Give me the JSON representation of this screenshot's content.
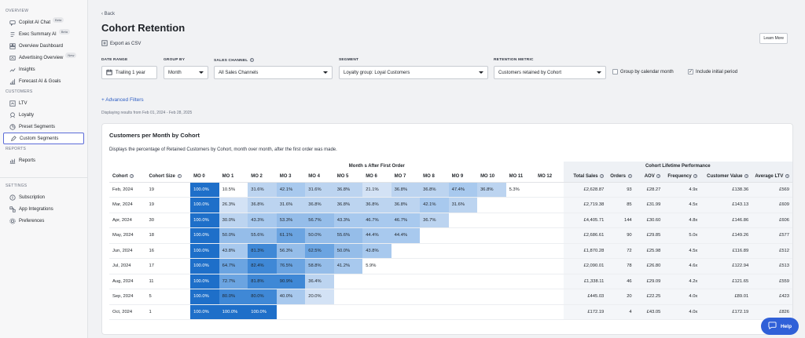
{
  "sidebar": {
    "sections": [
      {
        "label": "OVERVIEW",
        "items": [
          {
            "label": "Copilot AI Chat",
            "badge": "Beta",
            "icon": "chat-icon"
          },
          {
            "label": "Exec Summary AI",
            "badge": "Beta",
            "icon": "summary-icon"
          },
          {
            "label": "Overview Dashboard",
            "icon": "dashboard-icon"
          },
          {
            "label": "Advertising Overview",
            "badge": "New",
            "icon": "advertising-icon"
          },
          {
            "label": "Insights",
            "icon": "insights-icon"
          },
          {
            "label": "Forecast AI & Goals",
            "icon": "forecast-icon"
          }
        ]
      },
      {
        "label": "CUSTOMERS",
        "items": [
          {
            "label": "LTV",
            "icon": "ltv-icon"
          },
          {
            "label": "Loyalty",
            "icon": "loyalty-icon"
          },
          {
            "label": "Preset Segments",
            "icon": "preset-segments-icon"
          },
          {
            "label": "Custom Segments",
            "icon": "pencil-icon",
            "active": true
          }
        ]
      },
      {
        "label": "REPORTS",
        "items": [
          {
            "label": "Reports",
            "icon": "reports-icon"
          }
        ]
      },
      {
        "label": "SETTINGS",
        "items": [
          {
            "label": "Subscription",
            "icon": "subscription-icon"
          },
          {
            "label": "App Integrations",
            "icon": "integrations-icon"
          },
          {
            "label": "Preferences",
            "icon": "preferences-icon"
          }
        ]
      }
    ]
  },
  "header": {
    "back_label": "Back",
    "title": "Cohort Retention",
    "export_label": "Export as CSV",
    "learn_more": "Learn More"
  },
  "filters": {
    "date_range": {
      "label": "DATE RANGE",
      "value": "Trailing 1 year"
    },
    "group_by": {
      "label": "GROUP BY",
      "value": "Month"
    },
    "sales_channel": {
      "label": "SALES CHANNEL",
      "value": "All Sales Channels"
    },
    "segment": {
      "label": "SEGMENT",
      "value": "Loyalty group: Loyal Customers"
    },
    "retention_metric": {
      "label": "RETENTION METRIC",
      "value": "Customers retained by Cohort"
    },
    "group_by_calendar": {
      "label": "Group by calendar month",
      "checked": false
    },
    "include_initial": {
      "label": "Include initial period",
      "checked": true
    },
    "advanced_filters": "+ Advanced Filters",
    "displaying": "Displaying results from Feb 01, 2024 - Feb 28, 2025"
  },
  "card": {
    "title": "Customers per Month by Cohort",
    "description": "Displays the percentage of Retained Customers by Cohort, month over month, after the first order was made.",
    "group_months": "Month s After First Order",
    "group_perf": "Cohort Lifetime Performance",
    "col_cohort": "Cohort",
    "col_size": "Cohort Size",
    "month_headers": [
      "MO 0",
      "MO 1",
      "MO 2",
      "MO 3",
      "MO 4",
      "MO 5",
      "MO 6",
      "MO 7",
      "MO 8",
      "MO 9",
      "MO 10",
      "MO 11",
      "MO 12"
    ],
    "perf_headers": [
      "Total Sales",
      "Orders",
      "AOV",
      "Frequency",
      "Customer Value",
      "Average LTV"
    ],
    "rows": [
      {
        "cohort": "Feb, 2024",
        "size": "19",
        "cells": [
          "100.0%",
          "10.5%",
          "31.6%",
          "42.1%",
          "31.6%",
          "36.8%",
          "21.1%",
          "36.8%",
          "36.8%",
          "47.4%",
          "36.8%",
          "5.3%",
          ""
        ],
        "perf": [
          "£2,628.87",
          "93",
          "£28.27",
          "4.9x",
          "£138.36",
          "£569"
        ]
      },
      {
        "cohort": "Mar, 2024",
        "size": "19",
        "cells": [
          "100.0%",
          "26.3%",
          "36.8%",
          "31.6%",
          "36.8%",
          "36.8%",
          "36.8%",
          "36.8%",
          "42.1%",
          "31.6%",
          "",
          "",
          ""
        ],
        "perf": [
          "£2,719.38",
          "85",
          "£31.99",
          "4.5x",
          "£143.13",
          "£609"
        ]
      },
      {
        "cohort": "Apr, 2024",
        "size": "30",
        "cells": [
          "100.0%",
          "30.0%",
          "43.3%",
          "53.3%",
          "56.7%",
          "43.3%",
          "46.7%",
          "46.7%",
          "36.7%",
          "",
          "",
          "",
          ""
        ],
        "perf": [
          "£4,405.71",
          "144",
          "£30.60",
          "4.8x",
          "£146.86",
          "£606"
        ]
      },
      {
        "cohort": "May, 2024",
        "size": "18",
        "cells": [
          "100.0%",
          "50.0%",
          "55.6%",
          "61.1%",
          "50.0%",
          "55.6%",
          "44.4%",
          "44.4%",
          "",
          "",
          "",
          "",
          ""
        ],
        "perf": [
          "£2,686.61",
          "90",
          "£29.85",
          "5.0x",
          "£149.26",
          "£577"
        ]
      },
      {
        "cohort": "Jun, 2024",
        "size": "16",
        "cells": [
          "100.0%",
          "43.8%",
          "81.3%",
          "56.3%",
          "62.5%",
          "50.0%",
          "43.8%",
          "",
          "",
          "",
          "",
          "",
          ""
        ],
        "perf": [
          "£1,870.28",
          "72",
          "£25.98",
          "4.5x",
          "£116.89",
          "£512"
        ]
      },
      {
        "cohort": "Jul, 2024",
        "size": "17",
        "cells": [
          "100.0%",
          "64.7%",
          "82.4%",
          "76.5%",
          "58.8%",
          "41.2%",
          "5.9%",
          "",
          "",
          "",
          "",
          "",
          ""
        ],
        "perf": [
          "£2,090.01",
          "78",
          "£26.80",
          "4.6x",
          "£122.94",
          "£513"
        ]
      },
      {
        "cohort": "Aug, 2024",
        "size": "11",
        "cells": [
          "100.0%",
          "72.7%",
          "81.8%",
          "90.9%",
          "36.4%",
          "",
          "",
          "",
          "",
          "",
          "",
          "",
          ""
        ],
        "perf": [
          "£1,338.11",
          "46",
          "£29.09",
          "4.2x",
          "£121.65",
          "£559"
        ]
      },
      {
        "cohort": "Sep, 2024",
        "size": "5",
        "cells": [
          "100.0%",
          "80.0%",
          "80.0%",
          "40.0%",
          "20.0%",
          "",
          "",
          "",
          "",
          "",
          "",
          "",
          ""
        ],
        "perf": [
          "£445.03",
          "20",
          "£22.25",
          "4.0x",
          "£89.01",
          "£423"
        ]
      },
      {
        "cohort": "Oct, 2024",
        "size": "1",
        "cells": [
          "100.0%",
          "100.0%",
          "100.0%",
          "",
          "",
          "",
          "",
          "",
          "",
          "",
          "",
          "",
          ""
        ],
        "perf": [
          "£172.19",
          "4",
          "£43.05",
          "4.0x",
          "£172.19",
          "£826"
        ]
      }
    ]
  },
  "help_label": "Help"
}
